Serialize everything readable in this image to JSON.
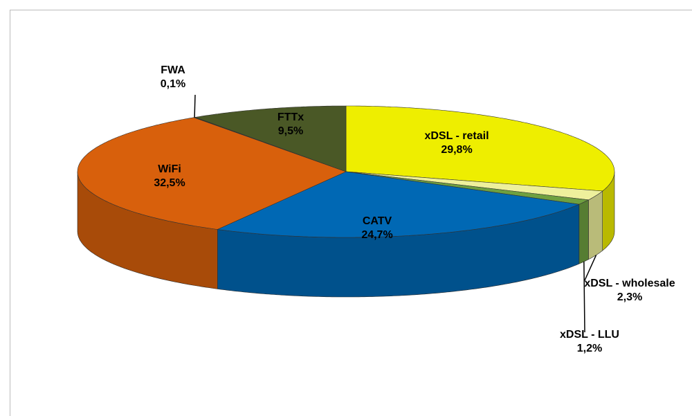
{
  "chart_data": {
    "type": "pie3d",
    "categories": [
      "xDSL - retail",
      "xDSL - wholesale",
      "xDSL - LLU",
      "CATV",
      "WiFi",
      "FWA",
      "FTTx"
    ],
    "values": [
      29.8,
      2.3,
      1.2,
      24.7,
      32.5,
      0.1,
      9.5
    ],
    "value_labels": [
      "29,8%",
      "2,3%",
      "1,2%",
      "24,7%",
      "32,5%",
      "0,1%",
      "9,5%"
    ],
    "colors": [
      "#eeee00",
      "#eef09c",
      "#6fa040",
      "#0068b4",
      "#d8600c",
      "#2c3414",
      "#4a5826"
    ]
  }
}
